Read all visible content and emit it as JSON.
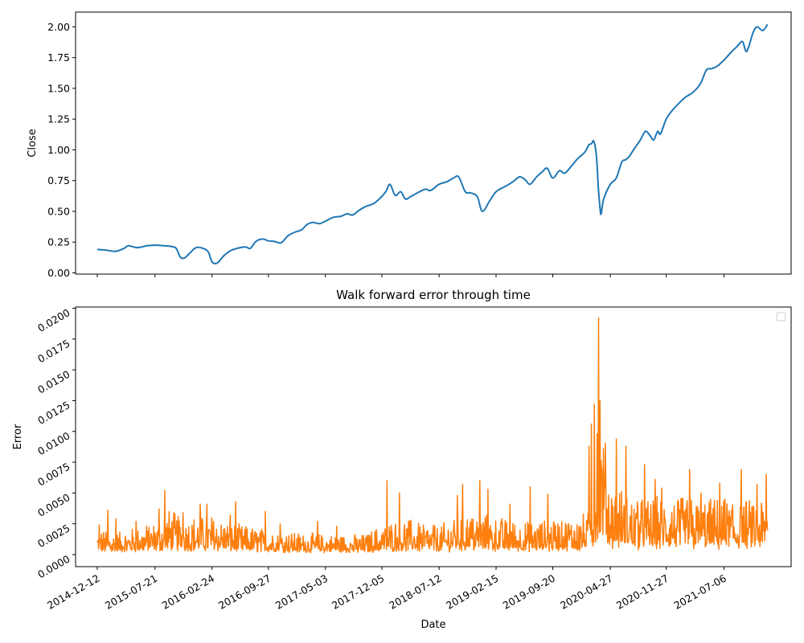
{
  "chart_data": [
    {
      "type": "line",
      "title": "",
      "xlabel": "",
      "ylabel": "Close",
      "ylim": [
        -0.01,
        2.12
      ],
      "yticks": [
        "0.00",
        "0.25",
        "0.50",
        "0.75",
        "1.00",
        "1.25",
        "1.50",
        "1.75",
        "2.00"
      ],
      "grid": false,
      "series": [
        {
          "color": "#1f77b4",
          "points": [
            [
              "2014-12-12",
              0.19
            ],
            [
              "2015-01-15",
              0.185
            ],
            [
              "2015-02-20",
              0.175
            ],
            [
              "2015-03-25",
              0.2
            ],
            [
              "2015-04-10",
              0.22
            ],
            [
              "2015-05-15",
              0.205
            ],
            [
              "2015-06-20",
              0.22
            ],
            [
              "2015-07-21",
              0.225
            ],
            [
              "2015-08-25",
              0.22
            ],
            [
              "2015-09-20",
              0.215
            ],
            [
              "2015-10-10",
              0.2
            ],
            [
              "2015-10-25",
              0.13
            ],
            [
              "2015-11-10",
              0.12
            ],
            [
              "2015-12-01",
              0.16
            ],
            [
              "2015-12-25",
              0.205
            ],
            [
              "2016-01-20",
              0.2
            ],
            [
              "2016-02-10",
              0.17
            ],
            [
              "2016-02-24",
              0.09
            ],
            [
              "2016-03-15",
              0.08
            ],
            [
              "2016-04-10",
              0.14
            ],
            [
              "2016-05-05",
              0.18
            ],
            [
              "2016-06-01",
              0.2
            ],
            [
              "2016-07-01",
              0.21
            ],
            [
              "2016-07-20",
              0.2
            ],
            [
              "2016-08-10",
              0.255
            ],
            [
              "2016-09-05",
              0.275
            ],
            [
              "2016-09-27",
              0.26
            ],
            [
              "2016-10-20",
              0.255
            ],
            [
              "2016-11-15",
              0.245
            ],
            [
              "2016-12-10",
              0.3
            ],
            [
              "2017-01-05",
              0.33
            ],
            [
              "2017-02-01",
              0.35
            ],
            [
              "2017-02-20",
              0.39
            ],
            [
              "2017-03-15",
              0.41
            ],
            [
              "2017-04-10",
              0.4
            ],
            [
              "2017-05-03",
              0.42
            ],
            [
              "2017-06-01",
              0.45
            ],
            [
              "2017-07-01",
              0.46
            ],
            [
              "2017-07-25",
              0.48
            ],
            [
              "2017-08-15",
              0.47
            ],
            [
              "2017-09-10",
              0.51
            ],
            [
              "2017-10-05",
              0.54
            ],
            [
              "2017-11-01",
              0.56
            ],
            [
              "2017-11-25",
              0.6
            ],
            [
              "2017-12-20",
              0.66
            ],
            [
              "2018-01-05",
              0.72
            ],
            [
              "2018-01-25",
              0.63
            ],
            [
              "2018-02-15",
              0.66
            ],
            [
              "2018-03-05",
              0.6
            ],
            [
              "2018-03-25",
              0.62
            ],
            [
              "2018-04-20",
              0.65
            ],
            [
              "2018-05-20",
              0.68
            ],
            [
              "2018-06-10",
              0.67
            ],
            [
              "2018-07-12",
              0.72
            ],
            [
              "2018-08-10",
              0.74
            ],
            [
              "2018-09-05",
              0.77
            ],
            [
              "2018-09-25",
              0.78
            ],
            [
              "2018-10-20",
              0.66
            ],
            [
              "2018-11-10",
              0.65
            ],
            [
              "2018-12-05",
              0.62
            ],
            [
              "2018-12-24",
              0.5
            ],
            [
              "2019-01-20",
              0.58
            ],
            [
              "2019-02-15",
              0.66
            ],
            [
              "2019-03-20",
              0.7
            ],
            [
              "2019-04-20",
              0.74
            ],
            [
              "2019-05-15",
              0.78
            ],
            [
              "2019-06-05",
              0.76
            ],
            [
              "2019-06-25",
              0.72
            ],
            [
              "2019-07-20",
              0.78
            ],
            [
              "2019-08-10",
              0.82
            ],
            [
              "2019-08-30",
              0.85
            ],
            [
              "2019-09-20",
              0.77
            ],
            [
              "2019-10-15",
              0.83
            ],
            [
              "2019-11-05",
              0.81
            ],
            [
              "2019-12-01",
              0.87
            ],
            [
              "2019-12-25",
              0.93
            ],
            [
              "2020-01-20",
              0.98
            ],
            [
              "2020-02-05",
              1.04
            ],
            [
              "2020-02-15",
              1.05
            ],
            [
              "2020-02-24",
              1.07
            ],
            [
              "2020-03-05",
              0.95
            ],
            [
              "2020-03-12",
              0.7
            ],
            [
              "2020-03-19",
              0.52
            ],
            [
              "2020-03-23",
              0.48
            ],
            [
              "2020-04-02",
              0.6
            ],
            [
              "2020-04-27",
              0.72
            ],
            [
              "2020-05-20",
              0.77
            ],
            [
              "2020-06-10",
              0.9
            ],
            [
              "2020-06-25",
              0.92
            ],
            [
              "2020-07-10",
              0.95
            ],
            [
              "2020-07-25",
              1.0
            ],
            [
              "2020-08-20",
              1.08
            ],
            [
              "2020-09-08",
              1.15
            ],
            [
              "2020-09-25",
              1.12
            ],
            [
              "2020-10-10",
              1.08
            ],
            [
              "2020-10-25",
              1.15
            ],
            [
              "2020-11-05",
              1.13
            ],
            [
              "2020-11-27",
              1.25
            ],
            [
              "2020-12-20",
              1.32
            ],
            [
              "2021-01-15",
              1.38
            ],
            [
              "2021-02-10",
              1.43
            ],
            [
              "2021-03-05",
              1.46
            ],
            [
              "2021-03-25",
              1.5
            ],
            [
              "2021-04-10",
              1.55
            ],
            [
              "2021-04-30",
              1.65
            ],
            [
              "2021-05-20",
              1.66
            ],
            [
              "2021-06-10",
              1.68
            ],
            [
              "2021-07-06",
              1.73
            ],
            [
              "2021-08-01",
              1.79
            ],
            [
              "2021-08-25",
              1.84
            ],
            [
              "2021-09-15",
              1.88
            ],
            [
              "2021-10-01",
              1.8
            ],
            [
              "2021-10-25",
              1.95
            ],
            [
              "2021-11-10",
              2.0
            ],
            [
              "2021-12-01",
              1.97
            ],
            [
              "2021-12-20",
              2.02
            ]
          ]
        }
      ]
    },
    {
      "type": "line",
      "title": "Walk forward error through time",
      "xlabel": "Date",
      "ylabel": "Error",
      "ylim": [
        -0.00098,
        0.0201
      ],
      "yticks": [
        "0.0000",
        "0.0025",
        "0.0050",
        "0.0075",
        "0.0100",
        "0.0125",
        "0.0150",
        "0.0175",
        "0.0200"
      ],
      "legend": "top-right",
      "grid": false,
      "series": [
        {
          "color": "#ff7f0e",
          "baseline": [
            [
              "2014-12-12",
              0.001
            ],
            [
              "2015-03-01",
              0.0009
            ],
            [
              "2015-07-21",
              0.0013
            ],
            [
              "2015-09-15",
              0.0018
            ],
            [
              "2015-11-01",
              0.0015
            ],
            [
              "2016-02-24",
              0.0016
            ],
            [
              "2016-06-01",
              0.0012
            ],
            [
              "2016-09-27",
              0.001
            ],
            [
              "2017-05-03",
              0.0008
            ],
            [
              "2017-10-01",
              0.0008
            ],
            [
              "2017-12-05",
              0.0012
            ],
            [
              "2018-02-20",
              0.0015
            ],
            [
              "2018-07-12",
              0.0011
            ],
            [
              "2018-10-10",
              0.0018
            ],
            [
              "2019-02-15",
              0.0015
            ],
            [
              "2019-06-01",
              0.0013
            ],
            [
              "2019-09-20",
              0.0014
            ],
            [
              "2020-02-01",
              0.0016
            ],
            [
              "2020-03-10",
              0.0045
            ],
            [
              "2020-03-25",
              0.0055
            ],
            [
              "2020-04-27",
              0.003
            ],
            [
              "2020-06-15",
              0.0026
            ],
            [
              "2020-09-01",
              0.0022
            ],
            [
              "2020-11-27",
              0.0024
            ],
            [
              "2021-03-01",
              0.0023
            ],
            [
              "2021-07-06",
              0.0022
            ],
            [
              "2021-12-20",
              0.0022
            ]
          ],
          "spikes": [
            [
              "2014-12-20",
              0.0024
            ],
            [
              "2015-01-22",
              0.0036
            ],
            [
              "2015-02-22",
              0.0029
            ],
            [
              "2015-05-10",
              0.0027
            ],
            [
              "2015-08-05",
              0.0037
            ],
            [
              "2015-08-28",
              0.0052
            ],
            [
              "2015-11-05",
              0.0034
            ],
            [
              "2016-01-10",
              0.0041
            ],
            [
              "2016-02-05",
              0.0041
            ],
            [
              "2016-05-05",
              0.0032
            ],
            [
              "2016-05-25",
              0.0043
            ],
            [
              "2016-09-15",
              0.0035
            ],
            [
              "2016-11-10",
              0.0025
            ],
            [
              "2017-04-02",
              0.0027
            ],
            [
              "2017-06-15",
              0.0023
            ],
            [
              "2017-12-25",
              0.006
            ],
            [
              "2018-02-10",
              0.005
            ],
            [
              "2018-06-20",
              0.0024
            ],
            [
              "2018-09-20",
              0.0048
            ],
            [
              "2018-10-10",
              0.0057
            ],
            [
              "2018-12-15",
              0.006
            ],
            [
              "2019-01-15",
              0.0053
            ],
            [
              "2019-04-10",
              0.0041
            ],
            [
              "2019-06-25",
              0.0055
            ],
            [
              "2019-09-01",
              0.0049
            ],
            [
              "2019-11-20",
              0.0023
            ],
            [
              "2020-01-15",
              0.0033
            ],
            [
              "2020-02-05",
              0.0088
            ],
            [
              "2020-02-15",
              0.0106
            ],
            [
              "2020-02-25",
              0.0122
            ],
            [
              "2020-03-08",
              0.0098
            ],
            [
              "2020-03-14",
              0.0192
            ],
            [
              "2020-03-18",
              0.0125
            ],
            [
              "2020-04-10",
              0.0063
            ],
            [
              "2020-05-20",
              0.0094
            ],
            [
              "2020-06-25",
              0.0088
            ],
            [
              "2020-08-10",
              0.0038
            ],
            [
              "2020-09-05",
              0.0073
            ],
            [
              "2020-10-15",
              0.0061
            ],
            [
              "2020-11-10",
              0.0054
            ],
            [
              "2021-01-10",
              0.0042
            ],
            [
              "2021-02-25",
              0.0069
            ],
            [
              "2021-04-10",
              0.005
            ],
            [
              "2021-06-20",
              0.0058
            ],
            [
              "2021-07-10",
              0.0045
            ],
            [
              "2021-09-10",
              0.0069
            ],
            [
              "2021-11-10",
              0.0057
            ],
            [
              "2021-12-15",
              0.0065
            ]
          ]
        }
      ]
    }
  ],
  "shared_x": {
    "type": "date",
    "range": [
      "2014-09-20",
      "2022-03-20"
    ],
    "ticks": [
      "2014-12-12",
      "2015-07-21",
      "2016-02-24",
      "2016-09-27",
      "2017-05-03",
      "2017-12-05",
      "2018-07-12",
      "2019-02-15",
      "2019-09-20",
      "2020-04-27",
      "2020-11-27",
      "2021-07-06"
    ]
  }
}
